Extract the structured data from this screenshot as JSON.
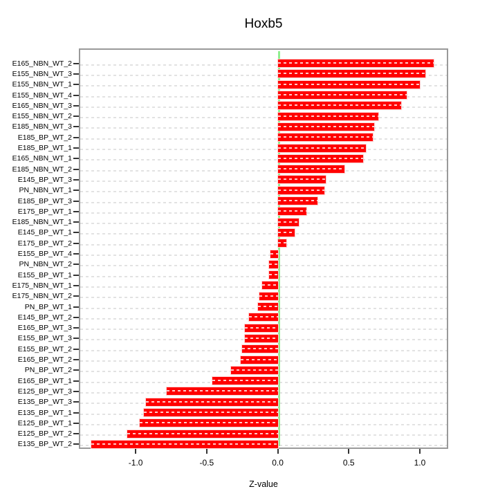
{
  "chart_data": {
    "type": "bar",
    "orientation": "horizontal",
    "title": "Hoxb5",
    "xlabel": "Z-value",
    "ylabel": "",
    "xlim": [
      -1.4,
      1.2
    ],
    "grid": true,
    "legend": "none",
    "xtick_values": [
      -1.0,
      -0.5,
      0.0,
      0.5,
      1.0
    ],
    "xtick_labels": [
      "-1.0",
      "-0.5",
      "0.0",
      "0.5",
      "1.0"
    ],
    "categories": [
      "E165_NBN_WT_2",
      "E155_NBN_WT_3",
      "E155_NBN_WT_1",
      "E155_NBN_WT_4",
      "E165_NBN_WT_3",
      "E155_NBN_WT_2",
      "E185_NBN_WT_3",
      "E185_BP_WT_2",
      "E185_BP_WT_1",
      "E165_NBN_WT_1",
      "E185_NBN_WT_2",
      "E145_BP_WT_3",
      "PN_NBN_WT_1",
      "E185_BP_WT_3",
      "E175_BP_WT_1",
      "E185_NBN_WT_1",
      "E145_BP_WT_1",
      "E175_BP_WT_2",
      "E155_BP_WT_4",
      "PN_NBN_WT_2",
      "E155_BP_WT_1",
      "E175_NBN_WT_1",
      "E175_NBN_WT_2",
      "PN_BP_WT_1",
      "E145_BP_WT_2",
      "E165_BP_WT_3",
      "E155_BP_WT_3",
      "E155_BP_WT_2",
      "E165_BP_WT_2",
      "PN_BP_WT_2",
      "E165_BP_WT_1",
      "E125_BP_WT_3",
      "E135_BP_WT_3",
      "E135_BP_WT_1",
      "E125_BP_WT_1",
      "E125_BP_WT_2",
      "E135_BP_WT_2"
    ],
    "values": [
      1.1,
      1.04,
      1.0,
      0.91,
      0.87,
      0.71,
      0.68,
      0.67,
      0.62,
      0.6,
      0.47,
      0.34,
      0.33,
      0.28,
      0.2,
      0.15,
      0.12,
      0.06,
      -0.05,
      -0.06,
      -0.06,
      -0.11,
      -0.13,
      -0.14,
      -0.2,
      -0.23,
      -0.23,
      -0.25,
      -0.26,
      -0.33,
      -0.46,
      -0.78,
      -0.93,
      -0.94,
      -0.97,
      -1.06,
      -1.31
    ],
    "colors": {
      "bar": "#FF0000",
      "bar_outline": "#FFD2D2",
      "zero_line": "#90EE90",
      "grid": "#E2E2E2",
      "axis_box": "#999999",
      "tick": "#333333",
      "text": "#000000"
    }
  }
}
